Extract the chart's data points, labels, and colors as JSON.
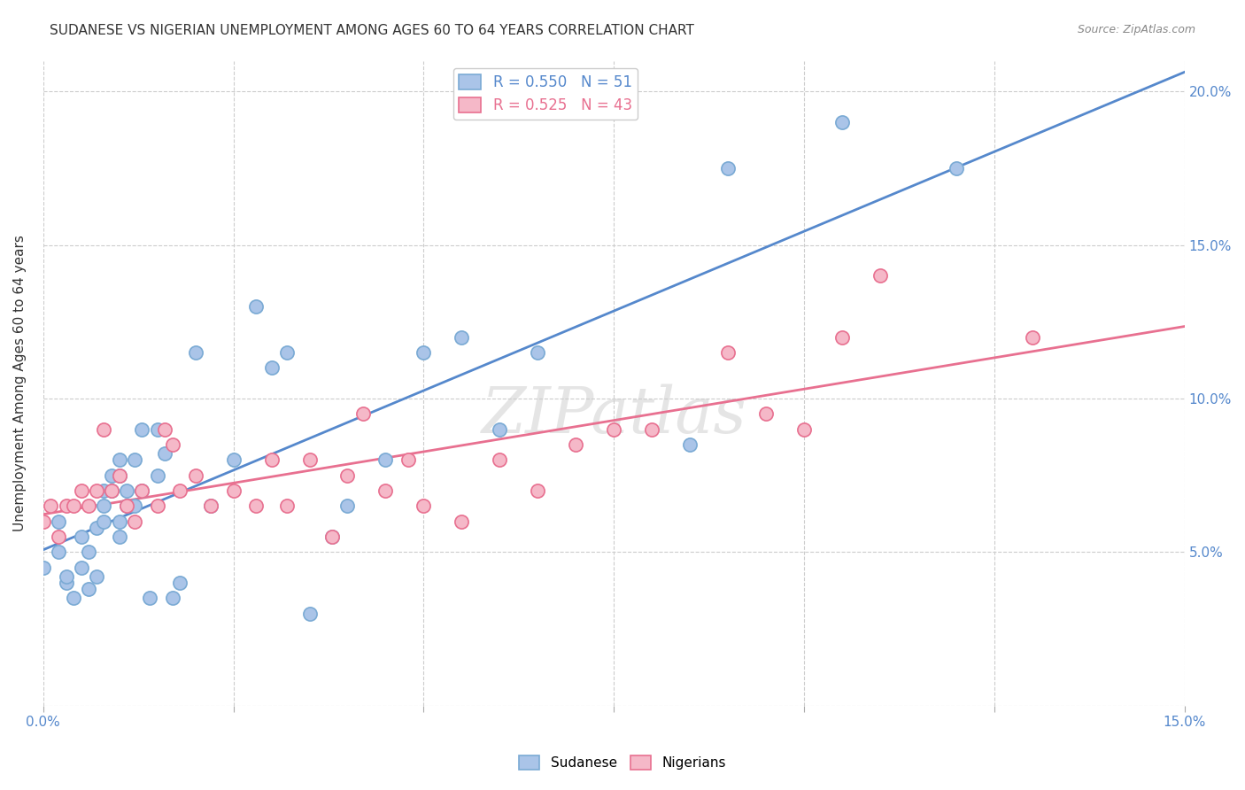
{
  "title": "SUDANESE VS NIGERIAN UNEMPLOYMENT AMONG AGES 60 TO 64 YEARS CORRELATION CHART",
  "source": "Source: ZipAtlas.com",
  "ylabel": "Unemployment Among Ages 60 to 64 years",
  "xlim": [
    0.0,
    0.15
  ],
  "ylim": [
    0.0,
    0.21
  ],
  "xticks": [
    0.0,
    0.025,
    0.05,
    0.075,
    0.1,
    0.125,
    0.15
  ],
  "yticks": [
    0.0,
    0.05,
    0.1,
    0.15,
    0.2
  ],
  "background_color": "#ffffff",
  "grid_color": "#cccccc",
  "sudanese_color": "#aac4e8",
  "sudanese_edge_color": "#7aaad4",
  "nigerian_color": "#f5b8c8",
  "nigerian_edge_color": "#e87090",
  "sudanese_line_color": "#5588cc",
  "nigerian_line_color": "#e87090",
  "sudanese_R": 0.55,
  "sudanese_N": 51,
  "nigerian_R": 0.525,
  "nigerian_N": 43,
  "watermark": "ZIPatlas",
  "sudanese_x": [
    0.0,
    0.002,
    0.002,
    0.003,
    0.003,
    0.004,
    0.005,
    0.005,
    0.006,
    0.006,
    0.007,
    0.007,
    0.008,
    0.008,
    0.008,
    0.009,
    0.009,
    0.01,
    0.01,
    0.01,
    0.01,
    0.011,
    0.011,
    0.012,
    0.012,
    0.013,
    0.013,
    0.014,
    0.015,
    0.015,
    0.016,
    0.017,
    0.018,
    0.02,
    0.022,
    0.025,
    0.028,
    0.03,
    0.032,
    0.035,
    0.038,
    0.04,
    0.045,
    0.05,
    0.055,
    0.06,
    0.065,
    0.085,
    0.09,
    0.105,
    0.12
  ],
  "sudanese_y": [
    0.045,
    0.05,
    0.06,
    0.04,
    0.042,
    0.035,
    0.045,
    0.055,
    0.038,
    0.05,
    0.042,
    0.058,
    0.06,
    0.065,
    0.07,
    0.07,
    0.075,
    0.055,
    0.06,
    0.075,
    0.08,
    0.065,
    0.07,
    0.065,
    0.08,
    0.09,
    0.07,
    0.035,
    0.075,
    0.09,
    0.082,
    0.035,
    0.04,
    0.115,
    0.065,
    0.08,
    0.13,
    0.11,
    0.115,
    0.03,
    0.055,
    0.065,
    0.08,
    0.115,
    0.12,
    0.09,
    0.115,
    0.085,
    0.175,
    0.19,
    0.175
  ],
  "nigerian_x": [
    0.0,
    0.001,
    0.002,
    0.003,
    0.004,
    0.005,
    0.006,
    0.007,
    0.008,
    0.009,
    0.01,
    0.011,
    0.012,
    0.013,
    0.015,
    0.016,
    0.017,
    0.018,
    0.02,
    0.022,
    0.025,
    0.028,
    0.03,
    0.032,
    0.035,
    0.038,
    0.04,
    0.042,
    0.045,
    0.048,
    0.05,
    0.055,
    0.06,
    0.065,
    0.07,
    0.075,
    0.08,
    0.09,
    0.095,
    0.1,
    0.105,
    0.11,
    0.13
  ],
  "nigerian_y": [
    0.06,
    0.065,
    0.055,
    0.065,
    0.065,
    0.07,
    0.065,
    0.07,
    0.09,
    0.07,
    0.075,
    0.065,
    0.06,
    0.07,
    0.065,
    0.09,
    0.085,
    0.07,
    0.075,
    0.065,
    0.07,
    0.065,
    0.08,
    0.065,
    0.08,
    0.055,
    0.075,
    0.095,
    0.07,
    0.08,
    0.065,
    0.06,
    0.08,
    0.07,
    0.085,
    0.09,
    0.09,
    0.115,
    0.095,
    0.09,
    0.12,
    0.14,
    0.12
  ]
}
